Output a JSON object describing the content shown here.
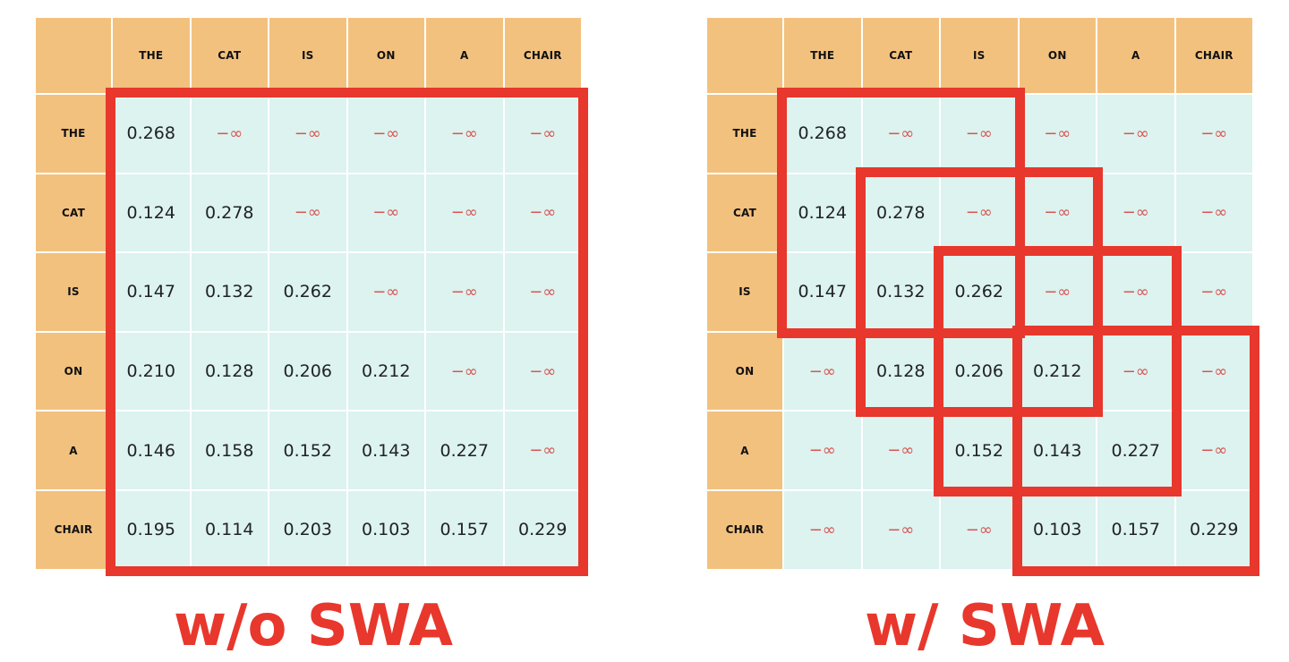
{
  "tokens": [
    "THE",
    "CAT",
    "IS",
    "ON",
    "A",
    "CHAIR"
  ],
  "panels": [
    {
      "caption": "w/o SWA",
      "matrix": [
        [
          "0.268",
          "−∞",
          "−∞",
          "−∞",
          "−∞",
          "−∞"
        ],
        [
          "0.124",
          "0.278",
          "−∞",
          "−∞",
          "−∞",
          "−∞"
        ],
        [
          "0.147",
          "0.132",
          "0.262",
          "−∞",
          "−∞",
          "−∞"
        ],
        [
          "0.210",
          "0.128",
          "0.206",
          "0.212",
          "−∞",
          "−∞"
        ],
        [
          "0.146",
          "0.158",
          "0.152",
          "0.143",
          "0.227",
          "−∞"
        ],
        [
          "0.195",
          "0.114",
          "0.203",
          "0.103",
          "0.157",
          "0.229"
        ]
      ],
      "windows": [
        {
          "rows": [
            0,
            5
          ],
          "cols": [
            0,
            5
          ]
        }
      ]
    },
    {
      "caption": "w/ SWA",
      "matrix": [
        [
          "0.268",
          "−∞",
          "−∞",
          "−∞",
          "−∞",
          "−∞"
        ],
        [
          "0.124",
          "0.278",
          "−∞",
          "−∞",
          "−∞",
          "−∞"
        ],
        [
          "0.147",
          "0.132",
          "0.262",
          "−∞",
          "−∞",
          "−∞"
        ],
        [
          "−∞",
          "0.128",
          "0.206",
          "0.212",
          "−∞",
          "−∞"
        ],
        [
          "−∞",
          "−∞",
          "0.152",
          "0.143",
          "0.227",
          "−∞"
        ],
        [
          "−∞",
          "−∞",
          "−∞",
          "0.103",
          "0.157",
          "0.229"
        ]
      ],
      "windows": [
        {
          "rows": [
            0,
            2
          ],
          "cols": [
            0,
            2
          ]
        },
        {
          "rows": [
            1,
            3
          ],
          "cols": [
            1,
            3
          ]
        },
        {
          "rows": [
            2,
            4
          ],
          "cols": [
            2,
            4
          ]
        },
        {
          "rows": [
            3,
            5
          ],
          "cols": [
            3,
            5
          ]
        }
      ]
    }
  ],
  "colors": {
    "header_bg": "#f3c17e",
    "cell_bg": "#dcf3f0",
    "window_border": "#e8372c",
    "neg_inf_text": "#d9534f",
    "caption_text": "#e8372c"
  }
}
